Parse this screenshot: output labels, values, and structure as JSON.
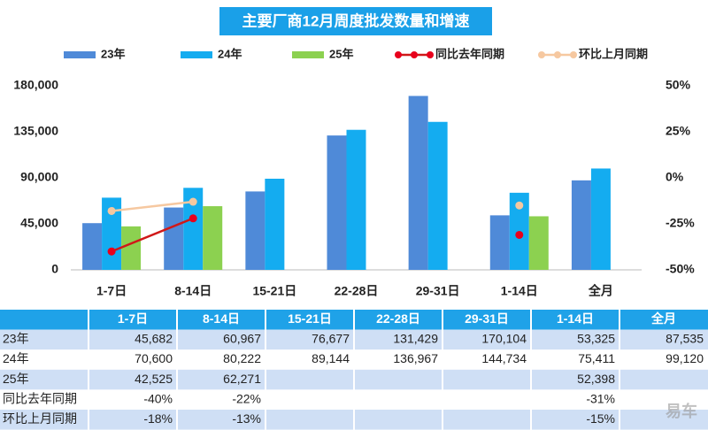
{
  "chart_data": {
    "type": "bar",
    "title": "主要厂商12月周度批发数量和增速",
    "categories": [
      "1-7日",
      "8-14日",
      "15-21日",
      "22-28日",
      "29-31日",
      "1-14日",
      "全月"
    ],
    "ylim": [
      0,
      180000
    ],
    "yticks": [
      0,
      {
        "value": 45000,
        "label": "45,000"
      },
      {
        "value": 90000,
        "label": "90,000"
      },
      {
        "value": 135000,
        "label": "135,000"
      },
      {
        "value": 180000,
        "label": "180,000"
      }
    ],
    "y2lim": [
      -50,
      50
    ],
    "y2ticks": [
      {
        "value": -50,
        "label": "-50%"
      },
      {
        "value": -25,
        "label": "-25%"
      },
      {
        "value": 0,
        "label": "0%"
      },
      {
        "value": 25,
        "label": "25%"
      },
      {
        "value": 50,
        "label": "50%"
      }
    ],
    "series": [
      {
        "name": "23年",
        "type": "bar",
        "color": "#4f8ad8",
        "values": [
          45682,
          60967,
          76677,
          131429,
          170104,
          53325,
          87535
        ],
        "value_labels": [
          "45,682",
          "60,967",
          "76,677",
          "131,429",
          "170,104",
          "53,325",
          "87,535"
        ]
      },
      {
        "name": "24年",
        "type": "bar",
        "color": "#14acf0",
        "values": [
          70600,
          80222,
          89144,
          136967,
          144734,
          75411,
          99120
        ],
        "value_labels": [
          "70,600",
          "80,222",
          "89,144",
          "136,967",
          "144,734",
          "75,411",
          "99,120"
        ]
      },
      {
        "name": "25年",
        "type": "bar",
        "color": "#8cd150",
        "values": [
          42525,
          62271,
          null,
          null,
          null,
          52398,
          null
        ],
        "value_labels": [
          "42,525",
          "62,271",
          null,
          null,
          null,
          "52,398",
          null
        ]
      },
      {
        "name": "同比去年同期",
        "type": "line",
        "axis": "y2",
        "color": "#e8001c",
        "line_color": "#d01818",
        "values": [
          -40,
          -22,
          null,
          null,
          null,
          -31,
          null
        ],
        "value_labels": [
          "-40%",
          "-22%",
          null,
          null,
          null,
          "-31%",
          null
        ]
      },
      {
        "name": "环比上月同期",
        "type": "line",
        "axis": "y2",
        "color": "#f6c8a0",
        "line_color": "#f6c8a0",
        "values": [
          -18,
          -13,
          null,
          null,
          null,
          -15,
          null
        ],
        "value_labels": [
          "-18%",
          "-13%",
          null,
          null,
          null,
          "-15%",
          null
        ]
      }
    ],
    "watermark": "易车"
  }
}
